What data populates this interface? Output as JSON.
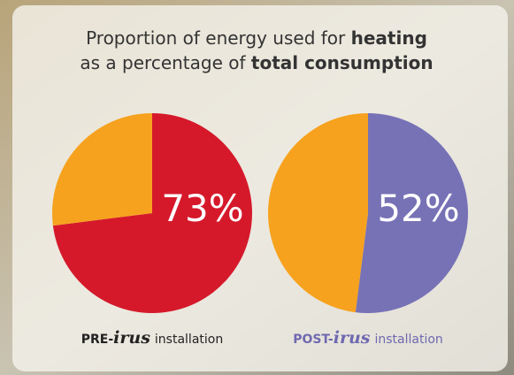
{
  "header": {
    "title": [
      "Proportion of energy used for",
      "heating",
      "as a percentage of",
      "total consumption"
    ]
  },
  "chart_data": [
    {
      "type": "pie",
      "values": [
        73,
        27
      ],
      "colors": [
        "#d5192b",
        "#f6a21e"
      ],
      "label": "73%",
      "caption": [
        "PRE-",
        "irus",
        "installation"
      ],
      "caption_color": "#222222"
    },
    {
      "type": "pie",
      "values": [
        52,
        48
      ],
      "colors": [
        "#7772b6",
        "#f6a21e"
      ],
      "label": "52%",
      "caption": [
        "POST-",
        "irus",
        "installation"
      ],
      "caption_color": "#6f69b0"
    }
  ]
}
